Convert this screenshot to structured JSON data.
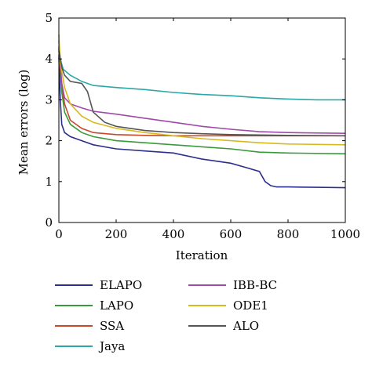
{
  "chart_data": {
    "type": "line",
    "title": "",
    "xlabel": "Iteration",
    "ylabel": "Mean errors (log)",
    "xlim": [
      0,
      1000
    ],
    "ylim": [
      0,
      5
    ],
    "x_ticks": [
      "0",
      "200",
      "400",
      "600",
      "800",
      "1000"
    ],
    "y_ticks": [
      "0",
      "1",
      "2",
      "3",
      "4",
      "5"
    ],
    "grid": false,
    "legend_position": "below",
    "series": [
      {
        "name": "ELAPO",
        "color": "#2b2f8c",
        "x": [
          0,
          5,
          10,
          20,
          40,
          80,
          120,
          200,
          300,
          400,
          500,
          600,
          650,
          700,
          720,
          740,
          760,
          800,
          900,
          1000
        ],
        "y": [
          4.05,
          3.0,
          2.4,
          2.2,
          2.1,
          2.0,
          1.9,
          1.8,
          1.75,
          1.7,
          1.55,
          1.45,
          1.35,
          1.25,
          1.0,
          0.9,
          0.87,
          0.87,
          0.86,
          0.85
        ]
      },
      {
        "name": "LAPO",
        "color": "#3a9a3a",
        "x": [
          0,
          10,
          20,
          40,
          80,
          120,
          200,
          300,
          400,
          500,
          600,
          700,
          800,
          1000
        ],
        "y": [
          4.25,
          3.2,
          2.7,
          2.4,
          2.2,
          2.1,
          2.0,
          1.95,
          1.9,
          1.85,
          1.8,
          1.72,
          1.7,
          1.68
        ]
      },
      {
        "name": "SSA",
        "color": "#c8482a",
        "x": [
          0,
          10,
          20,
          40,
          80,
          120,
          200,
          300,
          400,
          500,
          600,
          700,
          800,
          1000
        ],
        "y": [
          4.1,
          3.4,
          2.9,
          2.5,
          2.3,
          2.2,
          2.15,
          2.13,
          2.12,
          2.12,
          2.12,
          2.12,
          2.12,
          2.12
        ]
      },
      {
        "name": "Jaya",
        "color": "#2aa7a7",
        "x": [
          0,
          5,
          15,
          40,
          80,
          120,
          200,
          300,
          400,
          500,
          600,
          700,
          800,
          900,
          1000
        ],
        "y": [
          4.45,
          4.0,
          3.75,
          3.6,
          3.45,
          3.35,
          3.3,
          3.25,
          3.18,
          3.13,
          3.1,
          3.05,
          3.02,
          3.0,
          3.0
        ]
      },
      {
        "name": "IBB-BC",
        "color": "#a04aa8",
        "x": [
          0,
          10,
          20,
          40,
          80,
          120,
          200,
          300,
          400,
          500,
          600,
          700,
          800,
          1000
        ],
        "y": [
          4.3,
          3.4,
          3.05,
          2.9,
          2.8,
          2.72,
          2.65,
          2.55,
          2.45,
          2.35,
          2.28,
          2.22,
          2.2,
          2.18
        ]
      },
      {
        "name": "ODE1",
        "color": "#d7b91e",
        "x": [
          0,
          5,
          20,
          40,
          80,
          120,
          200,
          300,
          400,
          500,
          600,
          700,
          800,
          1000
        ],
        "y": [
          4.6,
          3.9,
          3.3,
          2.9,
          2.6,
          2.45,
          2.3,
          2.2,
          2.12,
          2.05,
          2.0,
          1.95,
          1.92,
          1.9
        ]
      },
      {
        "name": "ALO",
        "color": "#555555",
        "x": [
          0,
          10,
          20,
          40,
          80,
          100,
          120,
          160,
          200,
          300,
          400,
          500,
          600,
          700,
          800,
          1000
        ],
        "y": [
          4.2,
          3.8,
          3.6,
          3.45,
          3.4,
          3.2,
          2.7,
          2.45,
          2.35,
          2.25,
          2.2,
          2.17,
          2.15,
          2.14,
          2.13,
          2.12
        ]
      }
    ]
  }
}
